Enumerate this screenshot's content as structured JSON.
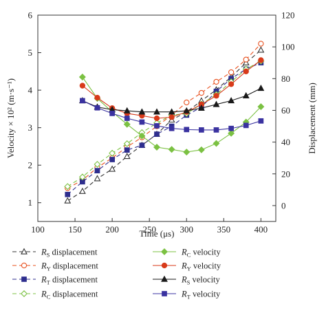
{
  "chart_data": {
    "type": "line",
    "xlabel": "Time (μs)",
    "ylabel_left": "Velocity × 10² (m·s⁻¹)",
    "ylabel_right": "Displacement (mm)",
    "xlim": [
      100,
      420
    ],
    "ylim_left": [
      0.5,
      6
    ],
    "ylim_right": [
      -10,
      120
    ],
    "x_ticks": [
      100,
      150,
      200,
      250,
      300,
      350,
      400
    ],
    "y_left_ticks": [
      1,
      2,
      3,
      4,
      5,
      6
    ],
    "y_right_ticks": [
      0,
      20,
      40,
      60,
      80,
      100,
      120
    ],
    "grid": false,
    "legend_placement": "bottom",
    "series": [
      {
        "key": "rs-disp",
        "name": "R",
        "sub": "S",
        "suffix": " displacement",
        "axis": "right",
        "color": "#333333",
        "dash": "6,4",
        "marker": "triangle-open",
        "x": [
          140,
          160,
          180,
          200,
          220,
          240,
          260,
          280,
          300,
          320,
          340,
          360,
          380,
          400
        ],
        "values": [
          3,
          9,
          17,
          23,
          31,
          38,
          45,
          54,
          59,
          66,
          73,
          81,
          90,
          98
        ]
      },
      {
        "key": "ry-disp",
        "name": "R",
        "sub": "Y",
        "suffix": " displacement",
        "axis": "right",
        "color": "#e8501e",
        "dash": "6,4",
        "marker": "circle-open",
        "x": [
          140,
          160,
          180,
          200,
          220,
          240,
          260,
          280,
          300,
          320,
          340,
          360,
          380,
          400
        ],
        "values": [
          11,
          16,
          24,
          30,
          37,
          43,
          50,
          57,
          65,
          71,
          78,
          84,
          92,
          102
        ]
      },
      {
        "key": "rt-disp",
        "name": "R",
        "sub": "T",
        "suffix": " displacement",
        "axis": "right",
        "color": "#2e2e8e",
        "dash": "6,4",
        "marker": "square-filled",
        "x": [
          140,
          160,
          180,
          200,
          220,
          240,
          260,
          280,
          300,
          320,
          340,
          360,
          380,
          400
        ],
        "values": [
          7,
          15,
          22,
          29,
          35,
          38,
          45,
          50,
          57,
          62,
          72,
          80,
          86,
          90
        ]
      },
      {
        "key": "rc-disp",
        "name": "R",
        "sub": "C",
        "suffix": " displacement",
        "axis": "right",
        "color": "#7bc142",
        "dash": "6,4",
        "marker": "diamond-open",
        "x": [
          140,
          160,
          180,
          200,
          220,
          240,
          260,
          280,
          300,
          320,
          340,
          360,
          380,
          400
        ],
        "values": [
          12,
          18,
          26,
          33,
          39,
          46,
          52,
          57,
          58,
          64,
          70,
          78,
          86,
          91
        ]
      },
      {
        "key": "rc-vel",
        "name": "R",
        "sub": "C",
        "suffix": " velocity",
        "axis": "left",
        "color": "#7bc142",
        "dash": "",
        "marker": "diamond-filled",
        "x": [
          160,
          180,
          200,
          220,
          240,
          260,
          280,
          300,
          320,
          340,
          360,
          380,
          400
        ],
        "values": [
          4.35,
          3.78,
          3.42,
          3.09,
          2.78,
          2.48,
          2.42,
          2.35,
          2.41,
          2.58,
          2.85,
          3.15,
          3.56
        ]
      },
      {
        "key": "ry-vel",
        "name": "R",
        "sub": "Y",
        "suffix": " velocity",
        "axis": "left",
        "color": "#d83a1a",
        "dash": "",
        "marker": "circle-filled",
        "x": [
          160,
          180,
          200,
          220,
          240,
          260,
          280,
          300,
          320,
          340,
          360,
          380,
          400
        ],
        "values": [
          4.12,
          3.8,
          3.52,
          3.38,
          3.32,
          3.25,
          3.28,
          3.42,
          3.62,
          3.85,
          4.16,
          4.5,
          4.8
        ]
      },
      {
        "key": "rs-vel",
        "name": "R",
        "sub": "S",
        "suffix": " velocity",
        "axis": "left",
        "color": "#1a1a1a",
        "dash": "",
        "marker": "triangle-filled",
        "x": [
          160,
          180,
          200,
          220,
          240,
          260,
          280,
          300,
          320,
          340,
          360,
          380,
          400
        ],
        "values": [
          3.72,
          3.55,
          3.48,
          3.45,
          3.42,
          3.42,
          3.42,
          3.45,
          3.52,
          3.62,
          3.72,
          3.85,
          4.05
        ]
      },
      {
        "key": "rt-vel",
        "name": "R",
        "sub": "T",
        "suffix": " velocity",
        "axis": "left",
        "color": "#3a32a0",
        "dash": "",
        "marker": "square-filled",
        "x": [
          160,
          180,
          200,
          220,
          240,
          260,
          280,
          300,
          320,
          340,
          360,
          380,
          400
        ],
        "values": [
          3.72,
          3.53,
          3.38,
          3.25,
          3.15,
          3.05,
          2.98,
          2.95,
          2.94,
          2.94,
          2.98,
          3.06,
          3.18
        ]
      }
    ],
    "legend_order": [
      "rs-disp",
      "rc-vel",
      "ry-disp",
      "ry-vel",
      "rt-disp",
      "rs-vel",
      "rc-disp",
      "rt-vel"
    ]
  }
}
